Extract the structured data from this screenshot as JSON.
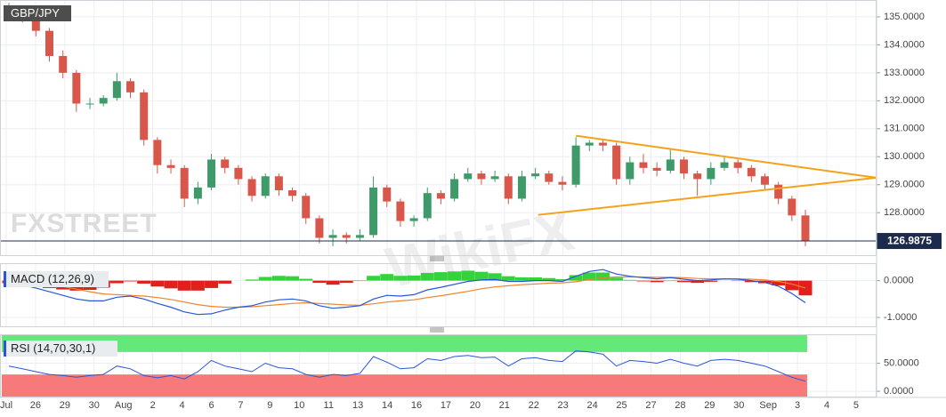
{
  "x_axis": {
    "labels": [
      "Jul",
      "26",
      "29",
      "30",
      "Aug",
      "2",
      "4",
      "6",
      "7",
      "9",
      "10",
      "11",
      "13",
      "14",
      "16",
      "17",
      "20",
      "21",
      "22",
      "23",
      "24",
      "25",
      "27",
      "28",
      "29",
      "30",
      "Sep",
      "3",
      "4",
      "5"
    ]
  },
  "watermarks": [
    "FXSTREET",
    "WikiFX"
  ],
  "chart_data": [
    {
      "type": "candlestick",
      "title": "GBP/JPY",
      "up_color": "#3f9a6a",
      "down_color": "#d9574a",
      "grid": true,
      "ylim": [
        126.48,
        135.57
      ],
      "yticks": [
        {
          "value": 128,
          "label": "128.0000"
        },
        {
          "value": 129,
          "label": "129.0000"
        },
        {
          "value": 130,
          "label": "130.0000"
        },
        {
          "value": 131,
          "label": "131.0000"
        },
        {
          "value": 132,
          "label": "132.0000"
        },
        {
          "value": 133,
          "label": "133.0000"
        },
        {
          "value": 134,
          "label": "134.0000"
        },
        {
          "value": 135,
          "label": "135.0000"
        }
      ],
      "last_price": 126.9875,
      "last_price_color": "#1c2b4b",
      "ohlc": [
        [
          135.4,
          135.5,
          135.0,
          135.2
        ],
        [
          135.2,
          135.3,
          134.8,
          134.9
        ],
        [
          134.9,
          135.0,
          134.3,
          134.5
        ],
        [
          134.5,
          134.6,
          133.4,
          133.6
        ],
        [
          133.6,
          133.8,
          132.8,
          133.0
        ],
        [
          133.0,
          133.1,
          131.6,
          131.9
        ],
        [
          131.9,
          132.1,
          131.7,
          131.9
        ],
        [
          131.9,
          132.2,
          131.8,
          132.1
        ],
        [
          132.1,
          133.0,
          132.0,
          132.7
        ],
        [
          132.7,
          132.8,
          132.1,
          132.3
        ],
        [
          132.3,
          132.4,
          130.4,
          130.6
        ],
        [
          130.6,
          130.7,
          129.4,
          129.7
        ],
        [
          129.7,
          129.9,
          129.4,
          129.6
        ],
        [
          129.6,
          129.7,
          128.2,
          128.5
        ],
        [
          128.5,
          129.1,
          128.3,
          128.9
        ],
        [
          128.9,
          130.1,
          128.8,
          129.9
        ],
        [
          129.9,
          130.0,
          129.4,
          129.6
        ],
        [
          129.6,
          129.7,
          129.0,
          129.2
        ],
        [
          129.2,
          129.3,
          128.4,
          128.6
        ],
        [
          128.6,
          129.4,
          128.5,
          129.3
        ],
        [
          129.3,
          129.4,
          128.6,
          128.8
        ],
        [
          128.8,
          128.9,
          128.4,
          128.6
        ],
        [
          128.6,
          128.7,
          127.6,
          127.8
        ],
        [
          127.8,
          127.9,
          126.9,
          127.1
        ],
        [
          127.1,
          127.4,
          126.8,
          127.2
        ],
        [
          127.2,
          127.3,
          126.9,
          127.1
        ],
        [
          127.1,
          127.4,
          127.0,
          127.2
        ],
        [
          127.2,
          129.3,
          127.1,
          128.9
        ],
        [
          128.9,
          129.0,
          128.2,
          128.4
        ],
        [
          128.4,
          128.5,
          127.5,
          127.7
        ],
        [
          127.7,
          127.9,
          127.5,
          127.8
        ],
        [
          127.8,
          128.9,
          127.7,
          128.7
        ],
        [
          128.7,
          128.8,
          128.3,
          128.5
        ],
        [
          128.5,
          129.4,
          128.4,
          129.2
        ],
        [
          129.2,
          129.6,
          129.1,
          129.4
        ],
        [
          129.4,
          129.5,
          129.0,
          129.2
        ],
        [
          129.2,
          129.5,
          129.1,
          129.3
        ],
        [
          129.3,
          129.4,
          128.3,
          128.5
        ],
        [
          128.5,
          129.5,
          128.4,
          129.3
        ],
        [
          129.3,
          129.6,
          129.2,
          129.4
        ],
        [
          129.4,
          129.5,
          129.0,
          129.1
        ],
        [
          129.1,
          129.3,
          128.8,
          129.0
        ],
        [
          129.0,
          130.7,
          128.9,
          130.4
        ],
        [
          130.4,
          130.6,
          130.2,
          130.5
        ],
        [
          130.5,
          130.6,
          130.2,
          130.4
        ],
        [
          130.4,
          130.5,
          129.0,
          129.2
        ],
        [
          129.2,
          130.0,
          129.0,
          129.8
        ],
        [
          129.8,
          130.1,
          129.4,
          129.6
        ],
        [
          129.6,
          129.8,
          129.3,
          129.5
        ],
        [
          129.5,
          130.3,
          129.4,
          129.9
        ],
        [
          129.9,
          130.0,
          129.2,
          129.4
        ],
        [
          129.4,
          129.5,
          128.6,
          129.2
        ],
        [
          129.2,
          129.8,
          129.0,
          129.6
        ],
        [
          129.6,
          130.0,
          129.5,
          129.8
        ],
        [
          129.8,
          129.9,
          129.4,
          129.6
        ],
        [
          129.6,
          129.7,
          129.1,
          129.3
        ],
        [
          129.3,
          129.4,
          128.8,
          129.0
        ],
        [
          129.0,
          129.1,
          128.3,
          128.5
        ],
        [
          128.5,
          128.6,
          127.7,
          127.9
        ],
        [
          127.9,
          128.1,
          126.8,
          127.0
        ]
      ],
      "trendlines": [
        {
          "color": "#f5a21b",
          "x": [
            42,
            64.26
          ],
          "values": [
            130.75,
            129.25
          ]
        },
        {
          "color": "#f5a21b",
          "x": [
            39.2,
            64.26
          ],
          "values": [
            127.92,
            129.25
          ]
        }
      ]
    },
    {
      "type": "macd",
      "title": "MACD (12,26,9)",
      "grid": true,
      "ylim": [
        -1.24,
        0.45
      ],
      "yticks": [
        {
          "value": 0,
          "label": "0.0000"
        },
        {
          "value": -1,
          "label": "-1.0000"
        }
      ],
      "histogram": {
        "up_color": "#34d23c",
        "down_color": "#e0201c",
        "values": [
          -0.07,
          -0.12,
          -0.15,
          -0.2,
          -0.24,
          -0.27,
          -0.25,
          -0.19,
          -0.07,
          -0.02,
          -0.08,
          -0.16,
          -0.21,
          -0.27,
          -0.27,
          -0.2,
          -0.08,
          0.0,
          0.03,
          0.1,
          0.13,
          0.12,
          0.05,
          -0.06,
          -0.11,
          -0.06,
          -0.01,
          0.13,
          0.18,
          0.13,
          0.14,
          0.21,
          0.23,
          0.25,
          0.27,
          0.24,
          0.2,
          0.12,
          0.09,
          0.09,
          0.07,
          0.04,
          0.15,
          0.22,
          0.22,
          0.08,
          0.02,
          -0.02,
          -0.04,
          -0.01,
          -0.04,
          -0.06,
          -0.03,
          0.0,
          -0.01,
          -0.04,
          -0.07,
          -0.13,
          -0.26,
          -0.4
        ]
      },
      "macd": {
        "color": "#2a55d6",
        "values": [
          -0.05,
          -0.12,
          -0.2,
          -0.3,
          -0.4,
          -0.5,
          -0.55,
          -0.55,
          -0.45,
          -0.42,
          -0.5,
          -0.62,
          -0.72,
          -0.85,
          -0.92,
          -0.9,
          -0.8,
          -0.72,
          -0.68,
          -0.58,
          -0.52,
          -0.5,
          -0.55,
          -0.68,
          -0.75,
          -0.72,
          -0.68,
          -0.5,
          -0.4,
          -0.42,
          -0.38,
          -0.25,
          -0.18,
          -0.1,
          -0.02,
          0.02,
          0.03,
          -0.02,
          -0.02,
          0.0,
          0.0,
          -0.02,
          0.12,
          0.25,
          0.3,
          0.18,
          0.12,
          0.08,
          0.05,
          0.08,
          0.04,
          0.0,
          0.02,
          0.05,
          0.04,
          0.0,
          -0.05,
          -0.15,
          -0.35,
          -0.6
        ]
      },
      "signal": {
        "color": "#f0842c",
        "values": [
          0.02,
          0.0,
          -0.05,
          -0.1,
          -0.16,
          -0.23,
          -0.3,
          -0.36,
          -0.38,
          -0.4,
          -0.42,
          -0.46,
          -0.51,
          -0.58,
          -0.65,
          -0.7,
          -0.72,
          -0.72,
          -0.71,
          -0.68,
          -0.65,
          -0.62,
          -0.6,
          -0.62,
          -0.64,
          -0.66,
          -0.67,
          -0.63,
          -0.58,
          -0.55,
          -0.52,
          -0.46,
          -0.41,
          -0.35,
          -0.29,
          -0.22,
          -0.17,
          -0.14,
          -0.11,
          -0.09,
          -0.07,
          -0.06,
          -0.03,
          0.03,
          0.08,
          0.1,
          0.1,
          0.1,
          0.09,
          0.09,
          0.08,
          0.06,
          0.05,
          0.05,
          0.05,
          0.04,
          0.02,
          -0.02,
          -0.09,
          -0.2
        ]
      }
    },
    {
      "type": "rsi",
      "title": "RSI (14,70,30,1)",
      "grid": true,
      "ylim": [
        -9.4,
        100
      ],
      "yticks": [
        {
          "value": 0,
          "label": "0.0000"
        },
        {
          "value": 50,
          "label": "50.0000"
        }
      ],
      "overbought": 70,
      "oversold": 30,
      "overbought_color": "#63e879",
      "oversold_color": "#f77a7a",
      "color": "#2a55d6",
      "values": [
        45,
        40,
        35,
        30,
        28,
        25,
        28,
        30,
        45,
        40,
        28,
        24,
        28,
        22,
        35,
        55,
        45,
        40,
        35,
        50,
        42,
        40,
        30,
        25,
        30,
        28,
        32,
        62,
        52,
        40,
        42,
        58,
        55,
        62,
        64,
        60,
        61,
        45,
        58,
        60,
        55,
        53,
        72,
        70,
        66,
        45,
        55,
        53,
        50,
        57,
        50,
        45,
        55,
        57,
        55,
        50,
        45,
        35,
        25,
        18
      ]
    }
  ]
}
